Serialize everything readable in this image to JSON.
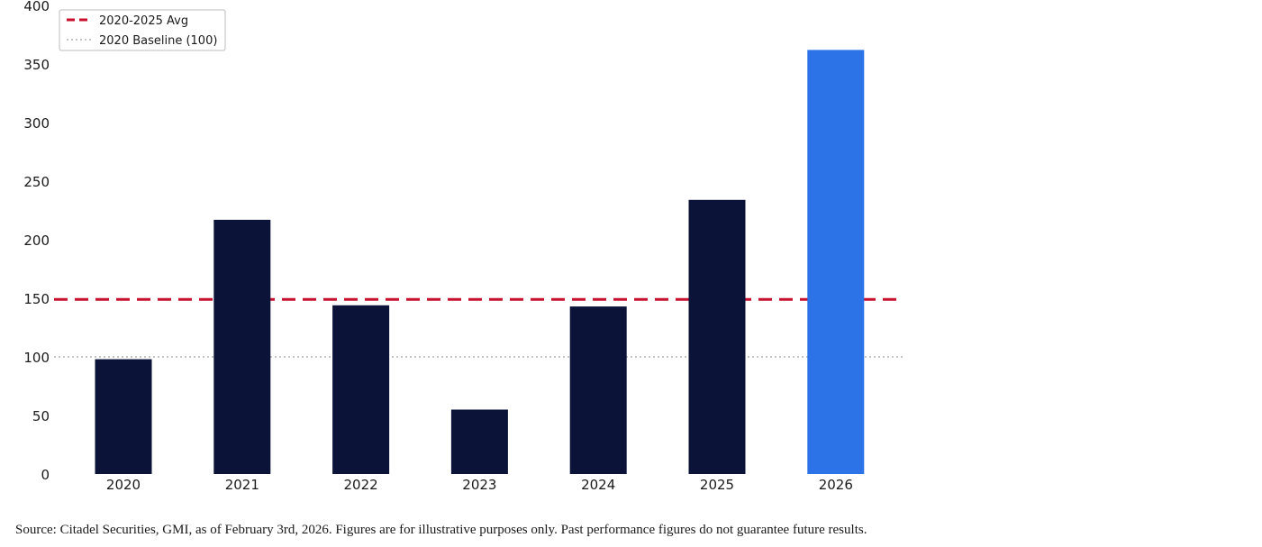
{
  "chart_data": {
    "type": "bar",
    "title": "",
    "xlabel": "",
    "ylabel": "",
    "categories": [
      "2020",
      "2021",
      "2022",
      "2023",
      "2024",
      "2025",
      "2026"
    ],
    "values": [
      98,
      217,
      144,
      55,
      143,
      234,
      362
    ],
    "highlight_category": "2026",
    "ylim": [
      0,
      400
    ],
    "yticks": [
      0,
      50,
      100,
      150,
      200,
      250,
      300,
      350,
      400
    ],
    "grid": false,
    "reference_lines": [
      {
        "label": "2020-2025 Avg",
        "value": 149,
        "style": "dashed",
        "color": "#c8102e"
      },
      {
        "label": "2020 Baseline (100)",
        "value": 100,
        "style": "dotted",
        "color": "#b0b0b0"
      }
    ],
    "legend_position": "top-left",
    "colors": {
      "bar": "#0b1339",
      "highlight_bar": "#2b73e6"
    }
  },
  "footer": {
    "source_note": "Source: Citadel Securities, GMI, as of February 3rd, 2026. Figures are for illustrative purposes only. Past performance figures do not guarantee future results."
  }
}
